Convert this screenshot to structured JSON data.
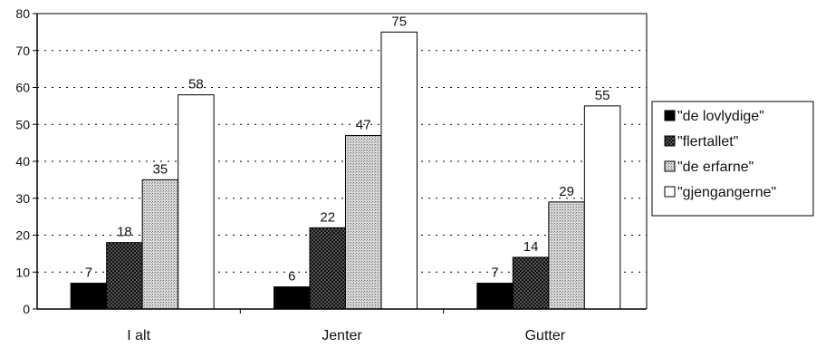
{
  "chart_data": {
    "type": "bar",
    "categories": [
      "I alt",
      "Jenter",
      "Gutter"
    ],
    "series": [
      {
        "name": "\"de lovlydige\"",
        "values": [
          7,
          6,
          7
        ],
        "pattern": "solid",
        "color": "#000000"
      },
      {
        "name": "\"flertallet\"",
        "values": [
          18,
          22,
          14
        ],
        "pattern": "dark-check",
        "color": "#3a3a3a"
      },
      {
        "name": "\"de erfarne\"",
        "values": [
          35,
          47,
          29
        ],
        "pattern": "light-dots",
        "color": "#bdbdbd"
      },
      {
        "name": "\"gjengangerne\"",
        "values": [
          58,
          75,
          55
        ],
        "pattern": "white",
        "color": "#ffffff"
      }
    ],
    "ylim": [
      0,
      80
    ],
    "yticks": [
      0,
      10,
      20,
      30,
      40,
      50,
      60,
      70,
      80
    ],
    "grid": "dotted horizontal",
    "legend": "right"
  }
}
